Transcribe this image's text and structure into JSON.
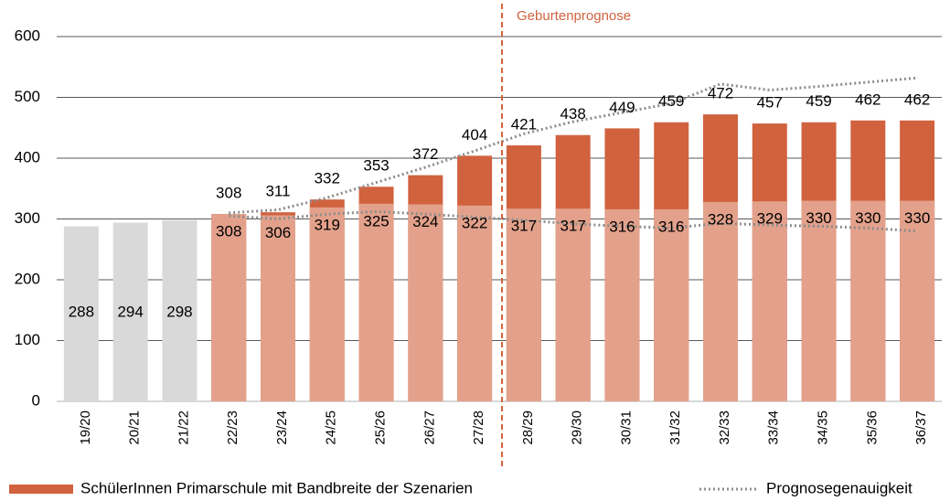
{
  "chart_data": {
    "type": "bar",
    "categories": [
      "19/20",
      "20/21",
      "21/22",
      "22/23",
      "23/24",
      "24/25",
      "25/26",
      "26/27",
      "27/28",
      "28/29",
      "29/30",
      "30/31",
      "31/32",
      "32/33",
      "33/34",
      "34/35",
      "35/36",
      "36/37"
    ],
    "series": [
      {
        "color": "#d9d9d9",
        "values": [
          288,
          294,
          298,
          null,
          null,
          null,
          null,
          null,
          null,
          null,
          null,
          null,
          null,
          null,
          null,
          null,
          null,
          null
        ]
      },
      {
        "name": "SchülerInnen Primarschule mit Bandbreite der Szenarien",
        "color": "#d0623e",
        "values": [
          null,
          null,
          null,
          308,
          311,
          332,
          353,
          372,
          404,
          421,
          438,
          449,
          459,
          472,
          457,
          459,
          462,
          462
        ]
      },
      {
        "color": "#e3a18b",
        "values": [
          null,
          null,
          null,
          308,
          306,
          319,
          325,
          324,
          322,
          317,
          317,
          316,
          316,
          328,
          329,
          330,
          330,
          330
        ]
      }
    ],
    "band": {
      "name": "Prognosegenauigkeit",
      "color": "#8c8c8c",
      "upper": [
        null,
        null,
        null,
        310,
        315,
        335,
        360,
        385,
        412,
        440,
        460,
        475,
        490,
        522,
        512,
        518,
        525,
        532
      ],
      "lower": [
        null,
        null,
        null,
        305,
        300,
        308,
        312,
        308,
        303,
        298,
        292,
        288,
        285,
        293,
        290,
        288,
        285,
        280
      ]
    },
    "annotation": "Geburtenprognose",
    "ylim": [
      0,
      600
    ],
    "yticks": [
      0,
      100,
      200,
      300,
      400,
      500,
      600
    ],
    "grid": true
  }
}
